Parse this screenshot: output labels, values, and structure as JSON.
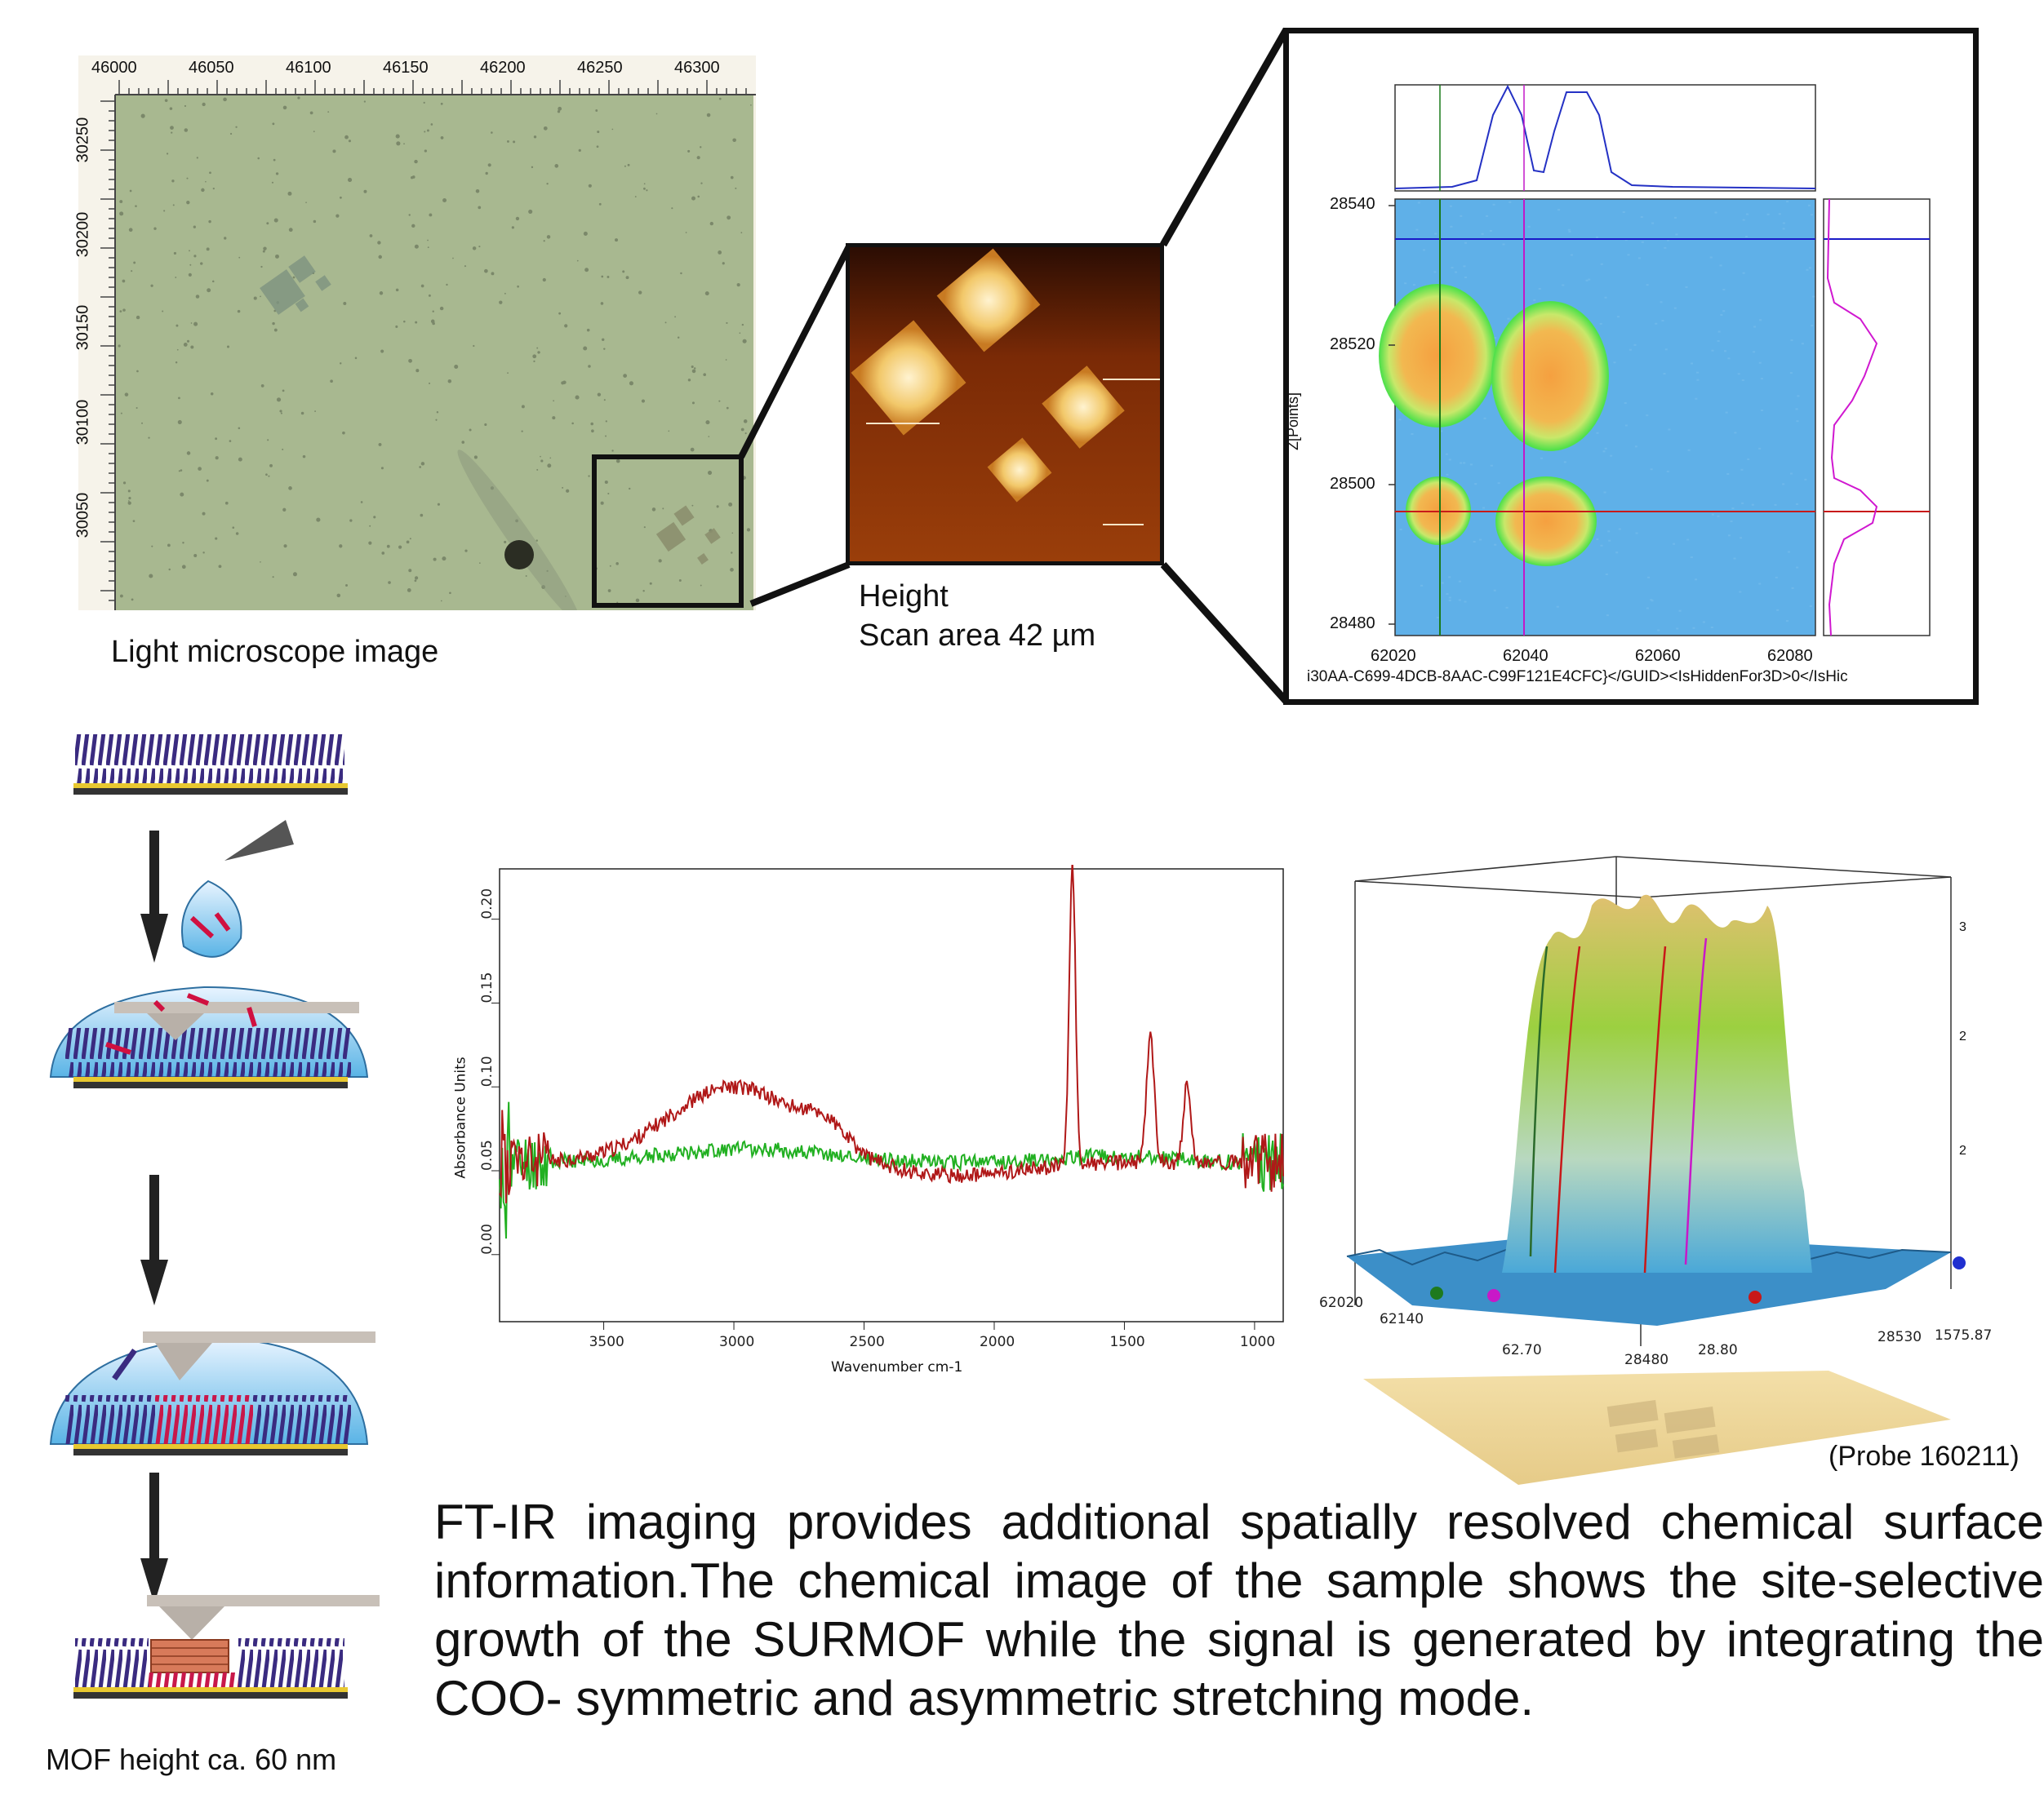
{
  "light_microscope": {
    "caption": "Light microscope image",
    "x_ticks": [
      "46000",
      "46050",
      "46100",
      "46150",
      "46200",
      "46250",
      "46300"
    ],
    "y_ticks": [
      "30250",
      "30200",
      "30150",
      "30100",
      "30050"
    ]
  },
  "afm": {
    "caption_line1": "Height",
    "caption_line2": "Scan area 42 µm"
  },
  "ir_map": {
    "y_label": "Z[Points]",
    "y_ticks": [
      "28540",
      "28520",
      "28500",
      "28480"
    ],
    "x_ticks": [
      "62020",
      "62040",
      "62060",
      "62080"
    ],
    "footer_text": "i30AA-C699-4DCB-8AAC-C99F121E4CFC}</GUID><IsHiddenFor3D>0</IsHic"
  },
  "spectrum": {
    "x_label": "Wavenumber cm-1",
    "y_label": "Absorbance Units",
    "x_ticks": [
      "3500",
      "3000",
      "2500",
      "2000",
      "1500",
      "1000"
    ],
    "y_ticks": [
      "0.00",
      "0.05",
      "0.10",
      "0.15",
      "0.20"
    ],
    "colors": {
      "red": "#b01818",
      "green": "#21b021"
    }
  },
  "surface_plot": {
    "probe_label": "(Probe 160211)",
    "axis_scale_labels": [
      "3",
      "2",
      "2"
    ]
  },
  "process": {
    "caption": "MOF height ca. 60 nm"
  },
  "description": "FT-IR imaging provides additional spatially resolved chemical surface information.The chemical image of the sample shows the site-selective growth of the SURMOF while the signal is generated by integrating the COO- symmetric and asymmetric stretching mode.",
  "colors": {
    "micro_bg": "#a7b88f",
    "map_bg": "#5fb0e8",
    "afm_bg": "#7a2a06"
  }
}
